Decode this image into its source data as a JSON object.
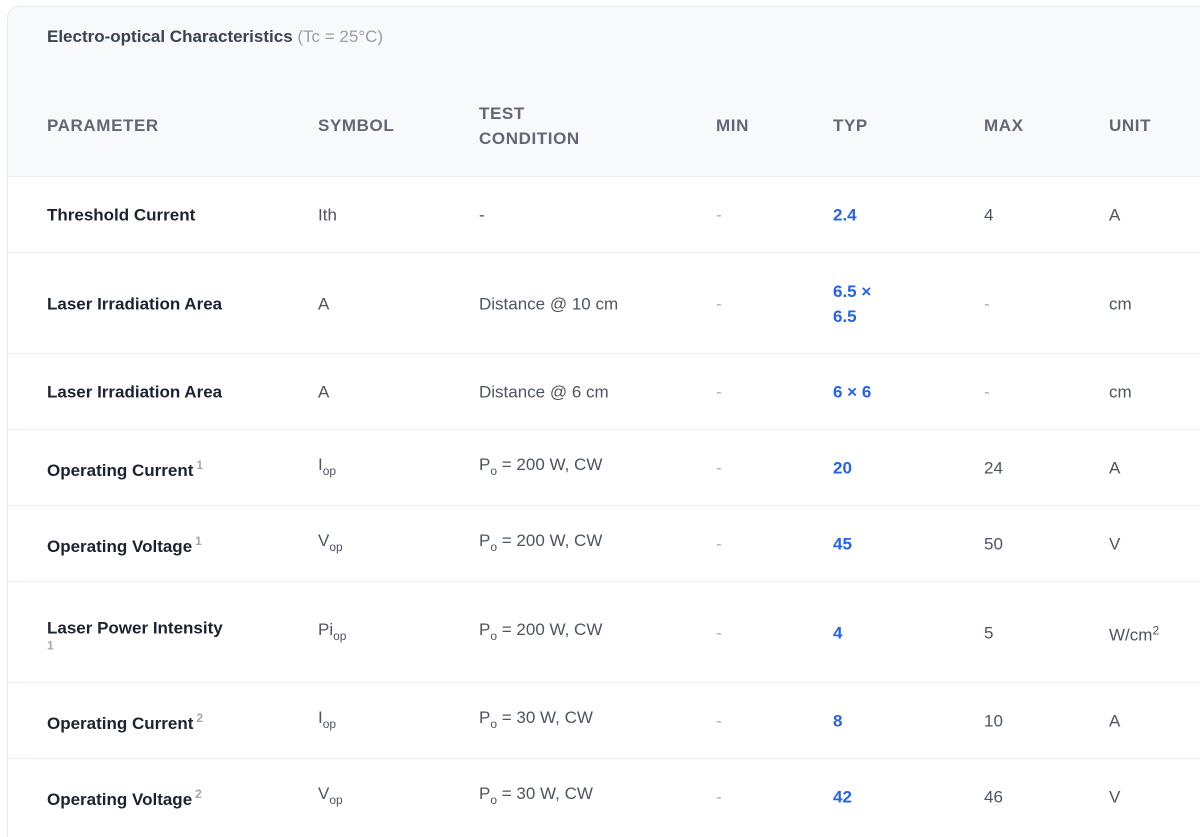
{
  "section": {
    "title": "Electro-optical Characteristics",
    "condition": "(Tc = 25°C)"
  },
  "table": {
    "headers": {
      "parameter": "PARAMETER",
      "symbol": "SYMBOL",
      "test_condition": "TEST CONDITION",
      "min": "MIN",
      "typ": "TYP",
      "max": "MAX",
      "unit": "UNIT"
    },
    "rows": [
      {
        "parameter": "Threshold Current",
        "note": "",
        "symbol": "Ith",
        "symbol_sub": "",
        "condition": "-",
        "condition_sub": "",
        "condition_rest": "",
        "min": "-",
        "typ": "2.4",
        "max": "4",
        "unit": "A",
        "unit_sup": ""
      },
      {
        "parameter": "Laser Irradiation Area",
        "note": "",
        "symbol": "A",
        "symbol_sub": "",
        "condition": "Distance @ 10 cm",
        "condition_sub": "",
        "condition_rest": "",
        "min": "-",
        "typ": "6.5 × 6.5",
        "max": "-",
        "unit": "cm",
        "unit_sup": ""
      },
      {
        "parameter": "Laser Irradiation Area",
        "note": "",
        "symbol": "A",
        "symbol_sub": "",
        "condition": "Distance @ 6 cm",
        "condition_sub": "",
        "condition_rest": "",
        "min": "-",
        "typ": "6 × 6",
        "max": "-",
        "unit": "cm",
        "unit_sup": ""
      },
      {
        "parameter": "Operating Current",
        "note": "1",
        "symbol": "I",
        "symbol_sub": "op",
        "condition": "P",
        "condition_sub": "o",
        "condition_rest": " = 200 W, CW",
        "min": "-",
        "typ": "20",
        "max": "24",
        "unit": "A",
        "unit_sup": ""
      },
      {
        "parameter": "Operating Voltage",
        "note": "1",
        "symbol": "V",
        "symbol_sub": "op",
        "condition": "P",
        "condition_sub": "o",
        "condition_rest": " = 200 W, CW",
        "min": "-",
        "typ": "45",
        "max": "50",
        "unit": "V",
        "unit_sup": ""
      },
      {
        "parameter": "Laser Power Intensity",
        "note": "1",
        "symbol": "Pi",
        "symbol_sub": "op",
        "condition": "P",
        "condition_sub": "o",
        "condition_rest": " = 200 W, CW",
        "min": "-",
        "typ": "4",
        "max": "5",
        "unit": "W/cm",
        "unit_sup": "2"
      },
      {
        "parameter": "Operating Current",
        "note": "2",
        "symbol": "I",
        "symbol_sub": "op",
        "condition": "P",
        "condition_sub": "o",
        "condition_rest": " = 30 W, CW",
        "min": "-",
        "typ": "8",
        "max": "10",
        "unit": "A",
        "unit_sup": ""
      },
      {
        "parameter": "Operating Voltage",
        "note": "2",
        "symbol": "V",
        "symbol_sub": "op",
        "condition": "P",
        "condition_sub": "o",
        "condition_rest": " = 30 W, CW",
        "min": "-",
        "typ": "42",
        "max": "46",
        "unit": "V",
        "unit_sup": ""
      }
    ]
  }
}
